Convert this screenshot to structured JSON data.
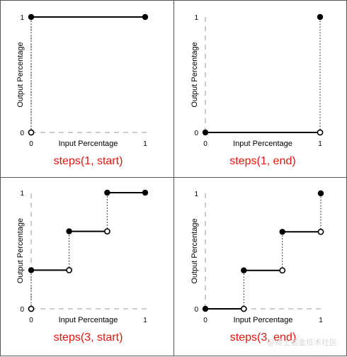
{
  "axes": {
    "x_label": "Input Percentage",
    "y_label": "Output Percentage",
    "x_ticks": [
      "0",
      "1"
    ],
    "y_ticks": [
      "0",
      "1"
    ]
  },
  "colors": {
    "caption": "#e8160c",
    "line": "#000000",
    "dashed_axis": "#9a9a9a",
    "border": "#555555"
  },
  "chart_data": [
    {
      "type": "line",
      "caption": "steps(1, start)",
      "xlim": [
        0,
        1
      ],
      "ylim": [
        0,
        1
      ],
      "segments": [
        {
          "x": [
            0,
            1
          ],
          "y": 1
        }
      ],
      "filled_points": [
        [
          0,
          1
        ],
        [
          1,
          1
        ]
      ],
      "open_points": [
        [
          0,
          0
        ]
      ],
      "risers": [
        {
          "x": 0,
          "y": [
            0,
            1
          ]
        }
      ]
    },
    {
      "type": "line",
      "caption": "steps(1, end)",
      "xlim": [
        0,
        1
      ],
      "ylim": [
        0,
        1
      ],
      "segments": [
        {
          "x": [
            0,
            1
          ],
          "y": 0
        }
      ],
      "filled_points": [
        [
          0,
          0
        ],
        [
          1,
          1
        ]
      ],
      "open_points": [
        [
          1,
          0
        ]
      ],
      "risers": [
        {
          "x": 1,
          "y": [
            0,
            1
          ]
        }
      ]
    },
    {
      "type": "line",
      "caption": "steps(3, start)",
      "xlim": [
        0,
        1
      ],
      "ylim": [
        0,
        1
      ],
      "segments": [
        {
          "x": [
            0,
            0.333
          ],
          "y": 0.333
        },
        {
          "x": [
            0.333,
            0.667
          ],
          "y": 0.667
        },
        {
          "x": [
            0.667,
            1
          ],
          "y": 1
        }
      ],
      "filled_points": [
        [
          0,
          0.333
        ],
        [
          0.333,
          0.667
        ],
        [
          0.667,
          1
        ],
        [
          1,
          1
        ]
      ],
      "open_points": [
        [
          0,
          0
        ],
        [
          0.333,
          0.333
        ],
        [
          0.667,
          0.667
        ]
      ],
      "risers": [
        {
          "x": 0,
          "y": [
            0,
            0.333
          ]
        },
        {
          "x": 0.333,
          "y": [
            0.333,
            0.667
          ]
        },
        {
          "x": 0.667,
          "y": [
            0.667,
            1
          ]
        }
      ]
    },
    {
      "type": "line",
      "caption": "steps(3, end)",
      "xlim": [
        0,
        1
      ],
      "ylim": [
        0,
        1
      ],
      "segments": [
        {
          "x": [
            0,
            0.333
          ],
          "y": 0
        },
        {
          "x": [
            0.333,
            0.667
          ],
          "y": 0.333
        },
        {
          "x": [
            0.667,
            1
          ],
          "y": 0.667
        }
      ],
      "filled_points": [
        [
          0,
          0
        ],
        [
          0.333,
          0.333
        ],
        [
          0.667,
          0.667
        ],
        [
          1,
          1
        ]
      ],
      "open_points": [
        [
          0.333,
          0
        ],
        [
          0.667,
          0.333
        ],
        [
          1,
          0.667
        ]
      ],
      "risers": [
        {
          "x": 0.333,
          "y": [
            0,
            0.333
          ]
        },
        {
          "x": 0.667,
          "y": [
            0.333,
            0.667
          ]
        },
        {
          "x": 1,
          "y": [
            0.667,
            1
          ]
        }
      ]
    }
  ],
  "watermark": "@稀土掘金技术社区"
}
